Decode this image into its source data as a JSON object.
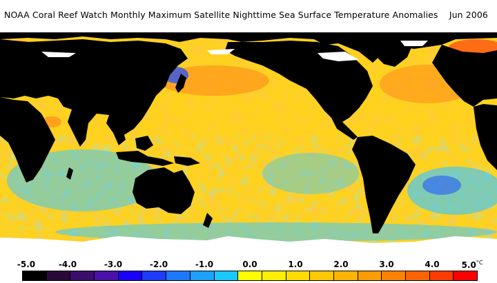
{
  "title": "NOAA Coral Reef Watch Monthly Maximum Satellite Nighttime Sea Surface Temperature Anomalies    Jun 2006",
  "legend": {
    "tick_labels": [
      "-5.0",
      "-4.0",
      "-3.0",
      "-2.0",
      "-1.0",
      "0.0",
      "1.0",
      "2.0",
      "3.0",
      "4.0",
      "5.0"
    ],
    "unit": "°C",
    "colors": [
      "#000000",
      "#2a0a3a",
      "#3c0e6e",
      "#4a12a8",
      "#1a00ff",
      "#1e3cff",
      "#1e78ff",
      "#1ea0ff",
      "#18c8ff",
      "#ffff00",
      "#ffee00",
      "#ffdc00",
      "#ffc800",
      "#ffb400",
      "#ff9c00",
      "#ff8200",
      "#ff6400",
      "#ff3c00",
      "#ff0000"
    ]
  },
  "map_colors": {
    "land": "#000000",
    "ice": "#ffffff",
    "ocean_base": "#ffd21e",
    "warm": "#ff8a1a",
    "hot": "#ff4a14",
    "cool": "#3cc8ff",
    "cold": "#1e50ff"
  }
}
